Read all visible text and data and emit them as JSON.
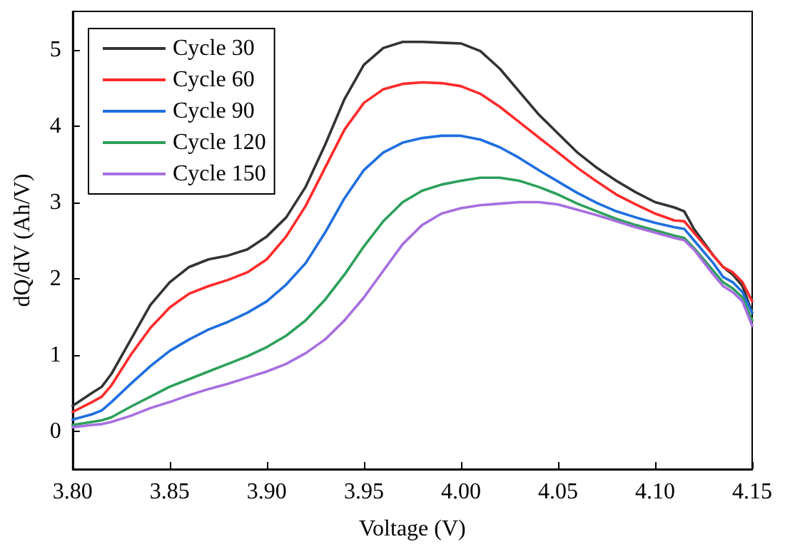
{
  "chart_data": {
    "type": "line",
    "xlabel": "Voltage (V)",
    "ylabel": "dQ/dV (Ah/V)",
    "x": [
      3.8,
      3.81,
      3.815,
      3.82,
      3.83,
      3.84,
      3.85,
      3.86,
      3.87,
      3.88,
      3.89,
      3.9,
      3.91,
      3.92,
      3.93,
      3.94,
      3.95,
      3.96,
      3.97,
      3.98,
      3.99,
      4.0,
      4.01,
      4.02,
      4.03,
      4.04,
      4.05,
      4.06,
      4.07,
      4.08,
      4.09,
      4.1,
      4.11,
      4.115,
      4.12,
      4.13,
      4.135,
      4.14,
      4.145,
      4.15
    ],
    "series": [
      {
        "name": "Cycle 30",
        "color": "#333333",
        "values": [
          0.33,
          0.5,
          0.58,
          0.75,
          1.2,
          1.65,
          1.95,
          2.15,
          2.25,
          2.3,
          2.38,
          2.55,
          2.8,
          3.2,
          3.75,
          4.35,
          4.8,
          5.02,
          5.1,
          5.1,
          5.09,
          5.08,
          4.98,
          4.75,
          4.45,
          4.15,
          3.9,
          3.65,
          3.45,
          3.28,
          3.13,
          3.0,
          2.93,
          2.88,
          2.65,
          2.3,
          2.15,
          2.05,
          1.9,
          1.55
        ]
      },
      {
        "name": "Cycle 60",
        "color": "#ff2a2a",
        "values": [
          0.25,
          0.38,
          0.45,
          0.6,
          1.0,
          1.35,
          1.62,
          1.8,
          1.9,
          1.98,
          2.08,
          2.25,
          2.55,
          2.95,
          3.45,
          3.95,
          4.3,
          4.48,
          4.55,
          4.57,
          4.56,
          4.52,
          4.42,
          4.25,
          4.05,
          3.85,
          3.65,
          3.45,
          3.27,
          3.1,
          2.97,
          2.85,
          2.76,
          2.75,
          2.6,
          2.3,
          2.15,
          2.08,
          1.95,
          1.7
        ]
      },
      {
        "name": "Cycle 90",
        "color": "#1f6fe0",
        "values": [
          0.15,
          0.22,
          0.27,
          0.38,
          0.62,
          0.85,
          1.05,
          1.2,
          1.33,
          1.43,
          1.55,
          1.7,
          1.92,
          2.2,
          2.6,
          3.05,
          3.42,
          3.65,
          3.78,
          3.84,
          3.87,
          3.87,
          3.82,
          3.72,
          3.58,
          3.42,
          3.27,
          3.12,
          2.99,
          2.88,
          2.8,
          2.73,
          2.67,
          2.65,
          2.5,
          2.2,
          2.02,
          1.95,
          1.82,
          1.55
        ]
      },
      {
        "name": "Cycle 120",
        "color": "#2ca05a",
        "values": [
          0.08,
          0.12,
          0.14,
          0.18,
          0.32,
          0.45,
          0.58,
          0.68,
          0.78,
          0.88,
          0.98,
          1.1,
          1.25,
          1.45,
          1.72,
          2.05,
          2.42,
          2.75,
          3.0,
          3.15,
          3.23,
          3.28,
          3.32,
          3.32,
          3.28,
          3.2,
          3.1,
          2.98,
          2.88,
          2.78,
          2.7,
          2.63,
          2.56,
          2.53,
          2.4,
          2.1,
          1.95,
          1.87,
          1.75,
          1.45
        ]
      },
      {
        "name": "Cycle 150",
        "color": "#a76fe0",
        "values": [
          0.05,
          0.08,
          0.09,
          0.12,
          0.2,
          0.3,
          0.38,
          0.47,
          0.55,
          0.62,
          0.7,
          0.78,
          0.88,
          1.02,
          1.2,
          1.45,
          1.75,
          2.1,
          2.45,
          2.7,
          2.85,
          2.92,
          2.96,
          2.98,
          3.0,
          3.0,
          2.97,
          2.9,
          2.83,
          2.75,
          2.67,
          2.6,
          2.53,
          2.5,
          2.38,
          2.05,
          1.9,
          1.82,
          1.7,
          1.38
        ]
      }
    ],
    "xlim": [
      3.8,
      4.15
    ],
    "xticks": [
      {
        "value": 3.8,
        "label": "3.80"
      },
      {
        "value": 3.85,
        "label": "3.85"
      },
      {
        "value": 3.9,
        "label": "3.90"
      },
      {
        "value": 3.95,
        "label": "3.95"
      },
      {
        "value": 4.0,
        "label": "4.00"
      },
      {
        "value": 4.05,
        "label": "4.05"
      },
      {
        "value": 4.1,
        "label": "4.10"
      },
      {
        "value": 4.15,
        "label": "4.15"
      }
    ],
    "ylim": [
      -0.5,
      5.5
    ],
    "yticks": [
      0,
      1,
      2,
      3,
      4,
      5
    ],
    "grid": false,
    "legend": "top left",
    "marker": "none",
    "line_style": "solid"
  }
}
